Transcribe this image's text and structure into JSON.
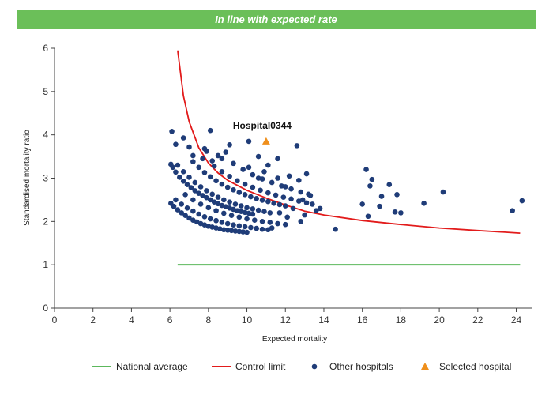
{
  "header": {
    "banner_text": "In line with expected rate",
    "banner_color": "#6bbf59"
  },
  "colors": {
    "national": "#5cb85c",
    "control": "#e21b1b",
    "others": "#1f3c78",
    "selected": "#ef8f1c"
  },
  "chart_data": {
    "type": "scatter",
    "title": "",
    "xlabel": "Expected mortality",
    "ylabel": "Standardised mortality ratio",
    "xlim": [
      0,
      24.8
    ],
    "ylim": [
      0,
      6
    ],
    "xticks": [
      0,
      2,
      4,
      6,
      8,
      10,
      12,
      14,
      16,
      18,
      20,
      22,
      24
    ],
    "yticks": [
      0,
      1,
      2,
      3,
      4,
      5,
      6
    ],
    "grid": false,
    "legend_position": "bottom",
    "series": [
      {
        "name": "National average",
        "kind": "line",
        "x": [
          6.4,
          24.2
        ],
        "y": [
          1,
          1
        ]
      },
      {
        "name": "Control limit",
        "kind": "curve",
        "x": [
          6.4,
          6.7,
          7.0,
          7.5,
          8.0,
          8.5,
          9.0,
          10.0,
          11.0,
          12.0,
          13.0,
          14.0,
          16.0,
          18.0,
          20.0,
          22.0,
          24.2
        ],
        "y": [
          5.95,
          4.9,
          4.3,
          3.7,
          3.35,
          3.12,
          2.95,
          2.72,
          2.54,
          2.38,
          2.24,
          2.15,
          2.02,
          1.93,
          1.85,
          1.79,
          1.73
        ]
      },
      {
        "name": "Other hospitals",
        "kind": "points",
        "points": [
          [
            6.1,
            4.08
          ],
          [
            6.3,
            3.78
          ],
          [
            6.7,
            3.93
          ],
          [
            7.0,
            3.72
          ],
          [
            7.2,
            3.52
          ],
          [
            7.7,
            3.45
          ],
          [
            7.8,
            3.68
          ],
          [
            7.9,
            3.62
          ],
          [
            8.1,
            4.1
          ],
          [
            8.2,
            3.4
          ],
          [
            8.5,
            3.52
          ],
          [
            8.7,
            3.45
          ],
          [
            9.1,
            3.77
          ],
          [
            8.9,
            3.6
          ],
          [
            6.05,
            3.32
          ],
          [
            6.15,
            3.25
          ],
          [
            6.3,
            3.14
          ],
          [
            6.5,
            3.02
          ],
          [
            6.7,
            2.93
          ],
          [
            6.9,
            2.85
          ],
          [
            7.1,
            2.78
          ],
          [
            7.3,
            2.71
          ],
          [
            7.5,
            2.65
          ],
          [
            7.7,
            2.6
          ],
          [
            7.9,
            2.55
          ],
          [
            8.1,
            2.5
          ],
          [
            8.3,
            2.45
          ],
          [
            8.5,
            2.41
          ],
          [
            8.7,
            2.37
          ],
          [
            8.9,
            2.34
          ],
          [
            9.1,
            2.31
          ],
          [
            9.3,
            2.28
          ],
          [
            9.5,
            2.25
          ],
          [
            9.7,
            2.23
          ],
          [
            9.9,
            2.21
          ],
          [
            10.1,
            2.19
          ],
          [
            10.3,
            2.17
          ],
          [
            6.4,
            3.3
          ],
          [
            6.7,
            3.15
          ],
          [
            7.0,
            3.02
          ],
          [
            7.3,
            2.9
          ],
          [
            7.6,
            2.8
          ],
          [
            7.9,
            2.71
          ],
          [
            8.2,
            2.63
          ],
          [
            8.5,
            2.56
          ],
          [
            8.8,
            2.5
          ],
          [
            9.1,
            2.45
          ],
          [
            9.4,
            2.4
          ],
          [
            9.7,
            2.36
          ],
          [
            10.0,
            2.32
          ],
          [
            10.3,
            2.29
          ],
          [
            10.6,
            2.26
          ],
          [
            10.9,
            2.23
          ],
          [
            11.2,
            2.2
          ],
          [
            7.2,
            3.38
          ],
          [
            7.5,
            3.25
          ],
          [
            7.8,
            3.13
          ],
          [
            8.1,
            3.03
          ],
          [
            8.4,
            2.94
          ],
          [
            8.7,
            2.86
          ],
          [
            9.0,
            2.79
          ],
          [
            9.3,
            2.73
          ],
          [
            9.6,
            2.67
          ],
          [
            9.9,
            2.62
          ],
          [
            10.2,
            2.57
          ],
          [
            10.5,
            2.53
          ],
          [
            10.8,
            2.49
          ],
          [
            11.1,
            2.46
          ],
          [
            11.4,
            2.42
          ],
          [
            11.7,
            2.39
          ],
          [
            12.0,
            2.36
          ],
          [
            8.3,
            3.28
          ],
          [
            8.7,
            3.15
          ],
          [
            9.1,
            3.04
          ],
          [
            9.5,
            2.94
          ],
          [
            9.9,
            2.86
          ],
          [
            10.3,
            2.79
          ],
          [
            10.7,
            2.72
          ],
          [
            11.1,
            2.66
          ],
          [
            11.5,
            2.61
          ],
          [
            11.9,
            2.56
          ],
          [
            12.3,
            2.52
          ],
          [
            12.7,
            2.47
          ],
          [
            13.1,
            2.43
          ],
          [
            9.3,
            3.34
          ],
          [
            9.8,
            3.2
          ],
          [
            10.3,
            3.08
          ],
          [
            10.8,
            2.98
          ],
          [
            11.3,
            2.9
          ],
          [
            11.8,
            2.82
          ],
          [
            12.3,
            2.75
          ],
          [
            12.8,
            2.68
          ],
          [
            13.2,
            2.63
          ],
          [
            6.05,
            2.42
          ],
          [
            6.2,
            2.35
          ],
          [
            6.4,
            2.27
          ],
          [
            6.6,
            2.2
          ],
          [
            6.8,
            2.14
          ],
          [
            7.0,
            2.08
          ],
          [
            7.2,
            2.03
          ],
          [
            7.4,
            1.99
          ],
          [
            7.6,
            1.95
          ],
          [
            7.8,
            1.92
          ],
          [
            8.0,
            1.89
          ],
          [
            8.2,
            1.87
          ],
          [
            8.4,
            1.85
          ],
          [
            8.6,
            1.83
          ],
          [
            8.8,
            1.81
          ],
          [
            9.0,
            1.8
          ],
          [
            9.2,
            1.79
          ],
          [
            9.4,
            1.78
          ],
          [
            9.6,
            1.77
          ],
          [
            9.8,
            1.76
          ],
          [
            10.0,
            1.75
          ],
          [
            6.3,
            2.5
          ],
          [
            6.6,
            2.4
          ],
          [
            6.9,
            2.31
          ],
          [
            7.2,
            2.24
          ],
          [
            7.5,
            2.17
          ],
          [
            7.8,
            2.11
          ],
          [
            8.1,
            2.06
          ],
          [
            8.4,
            2.02
          ],
          [
            8.7,
            1.98
          ],
          [
            9.0,
            1.95
          ],
          [
            9.3,
            1.92
          ],
          [
            9.6,
            1.9
          ],
          [
            9.9,
            1.88
          ],
          [
            10.2,
            1.86
          ],
          [
            10.5,
            1.84
          ],
          [
            10.8,
            1.82
          ],
          [
            11.1,
            1.81
          ],
          [
            6.8,
            2.62
          ],
          [
            7.2,
            2.5
          ],
          [
            7.6,
            2.4
          ],
          [
            8.0,
            2.32
          ],
          [
            8.4,
            2.25
          ],
          [
            8.8,
            2.19
          ],
          [
            9.2,
            2.14
          ],
          [
            9.6,
            2.1
          ],
          [
            10.0,
            2.06
          ],
          [
            10.4,
            2.03
          ],
          [
            10.8,
            2.0
          ],
          [
            11.2,
            1.98
          ],
          [
            11.6,
            1.95
          ],
          [
            12.0,
            1.93
          ],
          [
            10.1,
            3.25
          ],
          [
            10.6,
            3.0
          ],
          [
            10.9,
            3.15
          ],
          [
            11.1,
            3.3
          ],
          [
            11.6,
            3.0
          ],
          [
            12.0,
            2.8
          ],
          [
            12.2,
            3.05
          ],
          [
            12.6,
            3.75
          ],
          [
            12.7,
            2.95
          ],
          [
            12.9,
            2.5
          ],
          [
            13.1,
            3.1
          ],
          [
            13.3,
            2.6
          ],
          [
            13.4,
            2.4
          ],
          [
            13.6,
            2.25
          ],
          [
            13.8,
            2.3
          ],
          [
            12.4,
            2.3
          ],
          [
            12.1,
            2.1
          ],
          [
            11.3,
            1.85
          ],
          [
            11.7,
            2.2
          ],
          [
            12.8,
            2.0
          ],
          [
            13.0,
            2.15
          ],
          [
            10.1,
            3.85
          ],
          [
            11.6,
            3.45
          ],
          [
            10.6,
            3.5
          ],
          [
            14.6,
            1.82
          ],
          [
            16.0,
            2.4
          ],
          [
            16.2,
            3.2
          ],
          [
            16.3,
            2.12
          ],
          [
            16.4,
            2.82
          ],
          [
            16.5,
            2.97
          ],
          [
            16.9,
            2.35
          ],
          [
            17.0,
            2.58
          ],
          [
            17.4,
            2.85
          ],
          [
            17.7,
            2.22
          ],
          [
            17.8,
            2.62
          ],
          [
            18.0,
            2.2
          ],
          [
            19.2,
            2.42
          ],
          [
            20.2,
            2.68
          ],
          [
            23.8,
            2.25
          ],
          [
            24.3,
            2.48
          ]
        ]
      },
      {
        "name": "Selected hospital",
        "kind": "marker",
        "points": [
          [
            11.0,
            3.85
          ]
        ]
      }
    ],
    "annotations": [
      {
        "text": "Hospital0344",
        "x": 11.0,
        "y": 3.85
      }
    ]
  },
  "legend": {
    "items": [
      "National average",
      "Control limit",
      "Other hospitals",
      "Selected hospital"
    ]
  }
}
